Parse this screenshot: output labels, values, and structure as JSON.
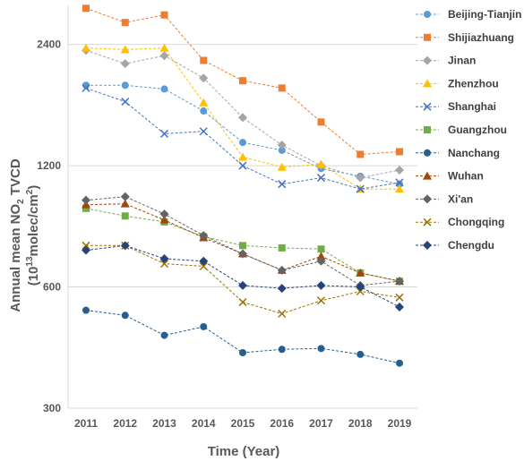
{
  "chart_data": {
    "type": "line",
    "xlabel": "Time (Year)",
    "ylabel": {
      "line1_main": "Annual mean NO",
      "line1_sub": "2",
      "line1_rest": " TVCD",
      "line2_open": "(10",
      "line2_sup1": "13",
      "line2_mid": "molec/cm",
      "line2_sup2": "2",
      "line2_close": ")"
    },
    "x": [
      2011,
      2012,
      2013,
      2014,
      2015,
      2016,
      2017,
      2018,
      2019
    ],
    "ylim": [
      300,
      3000
    ],
    "yscale": "log",
    "yticks": [
      300,
      600,
      1200,
      2400
    ],
    "grid": true,
    "legend_position": "right",
    "series": [
      {
        "name": "Beijing-Tianjin",
        "color": "#5b9bd5",
        "marker": "circle",
        "values": [
          1900,
          1900,
          1860,
          1640,
          1370,
          1310,
          1180,
          1130,
          1080
        ]
      },
      {
        "name": "Shijiazhuang",
        "color": "#ed7d31",
        "marker": "square",
        "values": [
          2950,
          2720,
          2840,
          2190,
          1950,
          1870,
          1540,
          1280,
          1300
        ]
      },
      {
        "name": "Jinan",
        "color": "#a5a5a5",
        "marker": "diamond",
        "values": [
          2320,
          2150,
          2250,
          1980,
          1580,
          1350,
          1200,
          1120,
          1170
        ]
      },
      {
        "name": "Zhenzhou",
        "color": "#ffc000",
        "marker": "triangle",
        "values": [
          2350,
          2330,
          2350,
          1720,
          1260,
          1190,
          1210,
          1050,
          1050
        ]
      },
      {
        "name": "Shanghai",
        "color": "#4472c4",
        "marker": "x",
        "values": [
          1870,
          1730,
          1440,
          1460,
          1200,
          1080,
          1120,
          1050,
          1090
        ]
      },
      {
        "name": "Guangzhou",
        "color": "#70ad47",
        "marker": "square",
        "values": [
          940,
          900,
          870,
          800,
          760,
          750,
          745,
          650,
          620
        ]
      },
      {
        "name": "Nanchang",
        "color": "#255e91",
        "marker": "circle",
        "values": [
          525,
          510,
          455,
          478,
          412,
          420,
          422,
          408,
          388
        ]
      },
      {
        "name": "Wuhan",
        "color": "#9e480e",
        "marker": "triangle",
        "values": [
          960,
          965,
          880,
          795,
          725,
          660,
          715,
          650,
          620
        ]
      },
      {
        "name": "Xi'an",
        "color": "#636363",
        "marker": "diamond",
        "values": [
          985,
          1005,
          910,
          805,
          725,
          660,
          695,
          605,
          620
        ]
      },
      {
        "name": "Chongqing",
        "color": "#997300",
        "marker": "x",
        "values": [
          760,
          760,
          685,
          675,
          550,
          515,
          555,
          585,
          565
        ]
      },
      {
        "name": "Chengdu",
        "color": "#264478",
        "marker": "diamond",
        "values": [
          740,
          760,
          705,
          695,
          605,
          595,
          605,
          600,
          535
        ]
      }
    ]
  }
}
